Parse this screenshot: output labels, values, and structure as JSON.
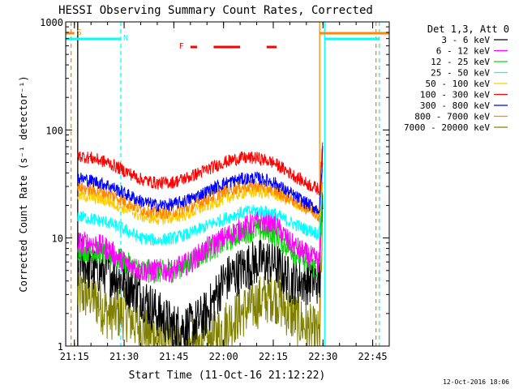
{
  "chart_data": {
    "type": "line",
    "title": "HESSI Observing Summary Count Rates, Corrected",
    "xlabel": "Start Time (11-Oct-16 21:12:22)",
    "ylabel": "Corrected Count Rate (s⁻¹ detector⁻¹)",
    "y_scale": "log",
    "ylim": [
      1,
      1000
    ],
    "xlim": [
      "21:12:22",
      "22:50:00"
    ],
    "x_ticks": [
      "21:15",
      "21:30",
      "21:45",
      "22:00",
      "22:15",
      "22:30",
      "22:45"
    ],
    "y_ticks": [
      "1",
      "10",
      "100",
      "1000"
    ],
    "grid": false,
    "legend_position": "right",
    "legend_title": "Det 1,3, Att 0",
    "footer_date": "12-Oct-2016 18:06",
    "series": [
      {
        "name": "3 - 6 keV",
        "color": "#000000",
        "x": [
          "21:16",
          "21:20",
          "21:25",
          "21:30",
          "21:35",
          "21:40",
          "21:45",
          "21:50",
          "21:55",
          "22:00",
          "22:05",
          "22:10",
          "22:15",
          "22:20",
          "22:25",
          "22:29",
          "22:30"
        ],
        "values": [
          7,
          5,
          5,
          4,
          3,
          2,
          1.5,
          1.5,
          2,
          4,
          5,
          6,
          6,
          4,
          4,
          4,
          30
        ]
      },
      {
        "name": "6 - 12 keV",
        "color": "#ff00ff",
        "x": [
          "21:16",
          "21:20",
          "21:25",
          "21:30",
          "21:35",
          "21:40",
          "21:45",
          "21:50",
          "21:55",
          "22:00",
          "22:05",
          "22:10",
          "22:15",
          "22:20",
          "22:25",
          "22:29",
          "22:30"
        ],
        "values": [
          9,
          9,
          8,
          6,
          5,
          5,
          5,
          6,
          8,
          10,
          12,
          14,
          14,
          9,
          7,
          6,
          100
        ]
      },
      {
        "name": "12 - 25 keV",
        "color": "#00dd00",
        "x": [
          "21:16",
          "21:20",
          "21:25",
          "21:30",
          "21:35",
          "21:40",
          "21:45",
          "21:50",
          "21:55",
          "22:00",
          "22:05",
          "22:10",
          "22:15",
          "22:20",
          "22:25",
          "22:29",
          "22:30"
        ],
        "values": [
          8,
          7.5,
          7,
          6,
          5,
          4.8,
          5,
          6,
          7.5,
          9,
          11,
          12,
          11,
          8,
          6,
          5,
          40
        ]
      },
      {
        "name": "25 - 50 keV",
        "color": "#00ffff",
        "x": [
          "21:16",
          "21:20",
          "21:25",
          "21:30",
          "21:35",
          "21:40",
          "21:45",
          "21:50",
          "21:55",
          "22:00",
          "22:05",
          "22:10",
          "22:15",
          "22:20",
          "22:25",
          "22:29",
          "22:30"
        ],
        "values": [
          16,
          15,
          14,
          12,
          10,
          9.5,
          10,
          11,
          13,
          15,
          17,
          18,
          17,
          14,
          12,
          11,
          45
        ]
      },
      {
        "name": "50 - 100 keV",
        "color": "#ffcc00",
        "x": [
          "21:16",
          "21:20",
          "21:25",
          "21:30",
          "21:35",
          "21:40",
          "21:45",
          "21:50",
          "21:55",
          "22:00",
          "22:05",
          "22:10",
          "22:15",
          "22:20",
          "22:25",
          "22:29",
          "22:30"
        ],
        "values": [
          25,
          24,
          22,
          19,
          16,
          15,
          15.5,
          17,
          20,
          23,
          26,
          27,
          26,
          22,
          19,
          17,
          50
        ]
      },
      {
        "name": "100 - 300 keV",
        "color": "#ff0000",
        "x": [
          "21:16",
          "21:20",
          "21:25",
          "21:30",
          "21:35",
          "21:40",
          "21:45",
          "21:50",
          "21:55",
          "22:00",
          "22:05",
          "22:10",
          "22:15",
          "22:20",
          "22:25",
          "22:29",
          "22:30"
        ],
        "values": [
          58,
          55,
          50,
          42,
          35,
          32,
          33,
          37,
          43,
          50,
          55,
          55,
          50,
          40,
          32,
          28,
          80
        ]
      },
      {
        "name": "300 - 800 keV",
        "color": "#0000ff",
        "x": [
          "21:16",
          "21:20",
          "21:25",
          "21:30",
          "21:35",
          "21:40",
          "21:45",
          "21:50",
          "21:55",
          "22:00",
          "22:05",
          "22:10",
          "22:15",
          "22:20",
          "22:25",
          "22:29",
          "22:30"
        ],
        "values": [
          36,
          34,
          31,
          26,
          22,
          20,
          20.5,
          23,
          27,
          32,
          35,
          36,
          33,
          26,
          21,
          18,
          70
        ]
      },
      {
        "name": "800 - 7000 keV",
        "color": "#ff8800",
        "x": [
          "21:16",
          "21:20",
          "21:25",
          "21:30",
          "21:35",
          "21:40",
          "21:45",
          "21:50",
          "21:55",
          "22:00",
          "22:05",
          "22:10",
          "22:15",
          "22:20",
          "22:25",
          "22:29",
          "22:30"
        ],
        "values": [
          30,
          28,
          26,
          22,
          18.5,
          17,
          17.5,
          19.5,
          23,
          27,
          29.5,
          30.5,
          28,
          23,
          19,
          16,
          55
        ]
      },
      {
        "name": "7000 - 20000 keV",
        "color": "#808000",
        "x": [
          "21:16",
          "21:20",
          "21:25",
          "21:30",
          "21:35",
          "21:40",
          "21:45",
          "21:50",
          "21:55",
          "22:00",
          "22:05",
          "22:10",
          "22:15",
          "22:20",
          "22:25",
          "22:29",
          "22:30"
        ],
        "values": [
          3,
          3,
          2,
          2,
          1.5,
          1.2,
          1,
          1,
          1,
          1.5,
          2,
          2.5,
          3,
          2,
          1.5,
          1.2,
          20
        ]
      }
    ],
    "state_flags": [
      {
        "label": "S",
        "color": "#ff8800",
        "ranges": [
          [
            "21:12:22",
            "21:15:00"
          ],
          [
            "22:29:00",
            "22:50:00"
          ]
        ]
      },
      {
        "label": "N",
        "color": "#00ffff",
        "ranges": [
          [
            "21:12:22",
            "21:29:00"
          ],
          [
            "22:30:30",
            "22:47:00"
          ]
        ]
      },
      {
        "label": "F",
        "color": "#ff0000",
        "ranges": [
          [
            "21:50:00",
            "21:52:00"
          ],
          [
            "21:57:00",
            "22:05:00"
          ],
          [
            "22:13:00",
            "22:16:00"
          ]
        ]
      }
    ],
    "markers": [
      {
        "time": "21:12:22",
        "color": "#00ffff",
        "style": "solid"
      },
      {
        "time": "21:14:00",
        "color": "#ff8800",
        "style": "dashed"
      },
      {
        "time": "21:16:00",
        "color": "#000000",
        "style": "solid"
      },
      {
        "time": "21:29:00",
        "color": "#00ffff",
        "style": "dashed"
      },
      {
        "time": "22:29:00",
        "color": "#ff8800",
        "style": "solid"
      },
      {
        "time": "22:30:30",
        "color": "#00ffff",
        "style": "solid"
      },
      {
        "time": "22:46:00",
        "color": "#ff8800",
        "style": "dashed"
      },
      {
        "time": "22:47:00",
        "color": "#00ffff",
        "style": "dashed"
      }
    ]
  }
}
